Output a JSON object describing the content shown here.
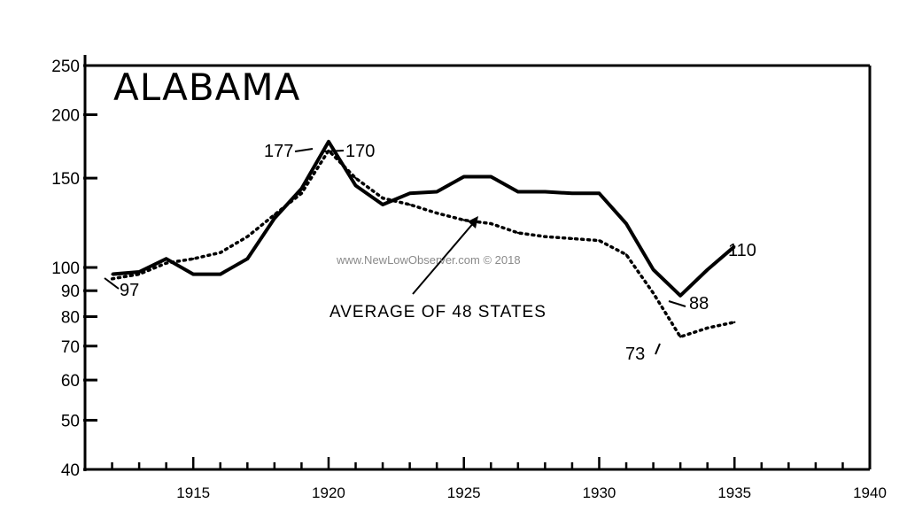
{
  "chart_data": {
    "type": "line",
    "title": "ALABAMA",
    "x": [
      1912,
      1913,
      1914,
      1915,
      1916,
      1917,
      1918,
      1919,
      1920,
      1921,
      1922,
      1923,
      1924,
      1925,
      1926,
      1927,
      1928,
      1929,
      1930,
      1931,
      1932,
      1933,
      1934,
      1935
    ],
    "series": [
      {
        "name": "",
        "style": "solid",
        "values": [
          97,
          98,
          104,
          97,
          97,
          104,
          125,
          143,
          177,
          145,
          133,
          140,
          141,
          151,
          151,
          141,
          141,
          140,
          140,
          122,
          99,
          88,
          99,
          110
        ]
      },
      {
        "name": "AVERAGE OF 48 STATES",
        "style": "dotted",
        "values": [
          95,
          97,
          102,
          104,
          107,
          115,
          127,
          140,
          170,
          150,
          137,
          133,
          128,
          124,
          122,
          117,
          115,
          114,
          113,
          106,
          89,
          73,
          76,
          78
        ]
      }
    ],
    "y_scale": "log",
    "ylim": [
      40,
      250
    ],
    "xlim": [
      1911,
      1940
    ],
    "y_ticks": [
      40,
      50,
      60,
      70,
      80,
      90,
      100,
      150,
      200,
      250
    ],
    "y_tick_labels": [
      "40",
      "50",
      "60",
      "70",
      "80",
      "90",
      "100",
      "150",
      "200",
      "250"
    ],
    "x_ticks": [
      1915,
      1920,
      1925,
      1930,
      1935,
      1940
    ],
    "x_tick_labels": [
      "1915",
      "1920",
      "1925",
      "1930",
      "1935",
      "1940"
    ],
    "annotations": [
      {
        "text": "97"
      },
      {
        "text": "177"
      },
      {
        "text": "170"
      },
      {
        "text": "110"
      },
      {
        "text": "88"
      },
      {
        "text": "73"
      }
    ],
    "series_label": "AVERAGE OF 48 STATES",
    "grid": false,
    "legend": "none"
  },
  "watermark": "www.NewLowObserver.com © 2018"
}
